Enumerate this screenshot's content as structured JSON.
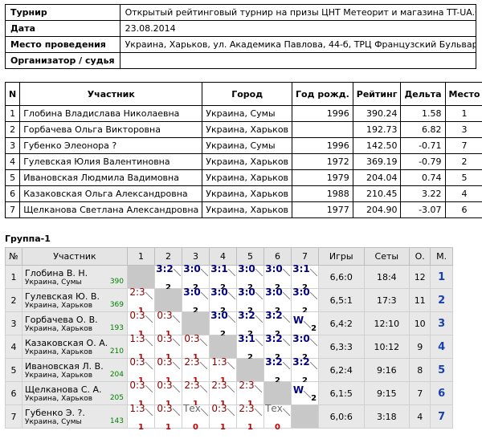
{
  "info": [
    {
      "label": "Турнир",
      "value": "Открытый рейтинговый турнир на призы ЦНТ Метеорит и магазина TT-UA.COM"
    },
    {
      "label": "Дата",
      "value": "23.08.2014"
    },
    {
      "label": "Место проведения",
      "value": "Украина, Харьков, ул. Академика Павлова, 44-б, ТРЦ Французский Бульвар"
    },
    {
      "label": "Организатор / судья",
      "value": ""
    }
  ],
  "participants": {
    "headers": [
      "N",
      "Участник",
      "Город",
      "Год рожд.",
      "Рейтинг",
      "Дельта",
      "Место"
    ],
    "rows": [
      [
        "1",
        "Глобина Владислава Николаевна",
        "Украина, Сумы",
        "1996",
        "390.24",
        "1.58",
        "1"
      ],
      [
        "2",
        "Горбачева Ольга Викторовна",
        "Украина, Харьков",
        "",
        "192.73",
        "6.82",
        "3"
      ],
      [
        "3",
        "Губенко Элеонора ?",
        "Украина, Сумы",
        "1996",
        "142.50",
        "-0.71",
        "7"
      ],
      [
        "4",
        "Гулевская Юлия Валентиновна",
        "Украина, Харьков",
        "1972",
        "369.19",
        "-0.79",
        "2"
      ],
      [
        "5",
        "Ивановская Людмила Вадимовна",
        "Украина, Харьков",
        "1979",
        "204.04",
        "0.74",
        "5"
      ],
      [
        "6",
        "Казаковская Ольга Александровна",
        "Украина, Харьков",
        "1988",
        "210.45",
        "3.22",
        "4"
      ],
      [
        "7",
        "Щелканова Светлана Александровна",
        "Украина, Харьков",
        "1977",
        "204.90",
        "-3.07",
        "6"
      ]
    ]
  },
  "group": {
    "title": "Группа-1",
    "headers": [
      "№",
      "Участник",
      "1",
      "2",
      "3",
      "4",
      "5",
      "6",
      "7",
      "Игры",
      "Сеты",
      "О.",
      "М."
    ],
    "rows": [
      {
        "num": "1",
        "name": "Глобина В. Н.",
        "city": "Украина, Сумы",
        "rating": "390",
        "cells": [
          null,
          [
            "3:2",
            "2"
          ],
          [
            "3:0",
            "2"
          ],
          [
            "3:1",
            "2"
          ],
          [
            "3:0",
            "2"
          ],
          [
            "3:0",
            "2"
          ],
          [
            "3:1",
            "2"
          ]
        ],
        "games": "6,6:0",
        "sets": "18:4",
        "points": "12",
        "place": "1"
      },
      {
        "num": "2",
        "name": "Гулевская Ю. В.",
        "city": "Украина, Харьков",
        "rating": "369",
        "cells": [
          [
            "2:3",
            "1"
          ],
          null,
          [
            "3:0",
            "2"
          ],
          [
            "3:0",
            "2"
          ],
          [
            "3:0",
            "2"
          ],
          [
            "3:0",
            "2"
          ],
          [
            "3:0",
            "2"
          ]
        ],
        "games": "6,5:1",
        "sets": "17:3",
        "points": "11",
        "place": "2"
      },
      {
        "num": "3",
        "name": "Горбачева О. В.",
        "city": "Украина, Харьков",
        "rating": "193",
        "cells": [
          [
            "0:3",
            "1"
          ],
          [
            "0:3",
            "1"
          ],
          null,
          [
            "3:0",
            "2"
          ],
          [
            "3:2",
            "2"
          ],
          [
            "3:2",
            "2"
          ],
          [
            "W",
            "2"
          ]
        ],
        "games": "6,4:2",
        "sets": "12:10",
        "points": "10",
        "place": "3"
      },
      {
        "num": "4",
        "name": "Казаковская О. А.",
        "city": "Украина, Харьков",
        "rating": "210",
        "cells": [
          [
            "1:3",
            "1"
          ],
          [
            "0:3",
            "1"
          ],
          [
            "0:3",
            "1"
          ],
          null,
          [
            "3:1",
            "2"
          ],
          [
            "3:2",
            "2"
          ],
          [
            "3:0",
            "2"
          ]
        ],
        "games": "6,3:3",
        "sets": "10:12",
        "points": "9",
        "place": "4"
      },
      {
        "num": "5",
        "name": "Ивановская Л. В.",
        "city": "Украина, Харьков",
        "rating": "204",
        "cells": [
          [
            "0:3",
            "1"
          ],
          [
            "0:3",
            "1"
          ],
          [
            "2:3",
            "1"
          ],
          [
            "1:3",
            "1"
          ],
          null,
          [
            "3:2",
            "2"
          ],
          [
            "3:2",
            "2"
          ]
        ],
        "games": "6,2:4",
        "sets": "9:16",
        "points": "8",
        "place": "5"
      },
      {
        "num": "6",
        "name": "Щелканова С. А.",
        "city": "Украина, Харьков",
        "rating": "205",
        "cells": [
          [
            "0:3",
            "1"
          ],
          [
            "0:3",
            "1"
          ],
          [
            "2:3",
            "1"
          ],
          [
            "2:3",
            "1"
          ],
          [
            "2:3",
            "1"
          ],
          null,
          [
            "W",
            "2"
          ]
        ],
        "games": "6,1:5",
        "sets": "9:15",
        "points": "7",
        "place": "6"
      },
      {
        "num": "7",
        "name": "Губенко Э. ?.",
        "city": "Украина, Сумы",
        "rating": "143",
        "cells": [
          [
            "1:3",
            "1"
          ],
          [
            "0:3",
            "1"
          ],
          [
            "Тех",
            "0"
          ],
          [
            "0:3",
            "1"
          ],
          [
            "2:3",
            "1"
          ],
          [
            "Тех",
            "0"
          ],
          null
        ],
        "games": "6,0:6",
        "sets": "3:18",
        "points": "4",
        "place": "7"
      }
    ]
  }
}
